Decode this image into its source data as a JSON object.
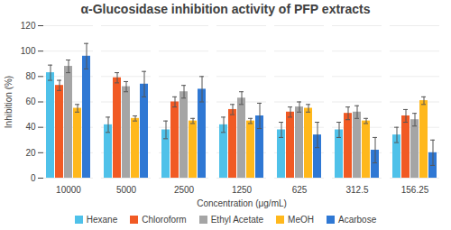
{
  "chart_data": {
    "type": "bar",
    "title": "α-Glucosidase inhibition activity of PFP extracts",
    "x_label": "Concentration (μg/mL)",
    "y_label": "Inhibition (%)",
    "categories": [
      "10000",
      "5000",
      "2500",
      "1250",
      "625",
      "312.5",
      "156.25"
    ],
    "series": [
      {
        "name": "Hexane",
        "color": "#4fc1e9",
        "values": [
          83,
          42,
          38,
          42,
          38,
          38,
          34
        ],
        "errors": [
          6,
          6,
          7,
          6,
          6,
          6,
          6
        ]
      },
      {
        "name": "Chloroform",
        "color": "#f15a24",
        "values": [
          73,
          79,
          60,
          54,
          52,
          51,
          49
        ],
        "errors": [
          4,
          4,
          4,
          4,
          4,
          5,
          5
        ]
      },
      {
        "name": "Ethyl Acetate",
        "color": "#a5a5a5",
        "values": [
          88,
          72,
          68,
          63,
          56,
          52,
          46
        ],
        "errors": [
          5,
          4,
          5,
          5,
          4,
          5,
          5
        ]
      },
      {
        "name": "MeOH",
        "color": "#ffb81c",
        "values": [
          55,
          47,
          45,
          45,
          55,
          45,
          61
        ],
        "errors": [
          3,
          2,
          2,
          2,
          3,
          2,
          3
        ]
      },
      {
        "name": "Acarbose",
        "color": "#2f78d4",
        "values": [
          96,
          74,
          70,
          49,
          34,
          22,
          20
        ],
        "errors": [
          10,
          10,
          10,
          10,
          10,
          10,
          10
        ]
      }
    ],
    "ylim": [
      0,
      120
    ],
    "yticks": [
      0,
      20,
      40,
      60,
      80,
      100,
      120
    ],
    "grid": true,
    "legend": "bottom"
  }
}
